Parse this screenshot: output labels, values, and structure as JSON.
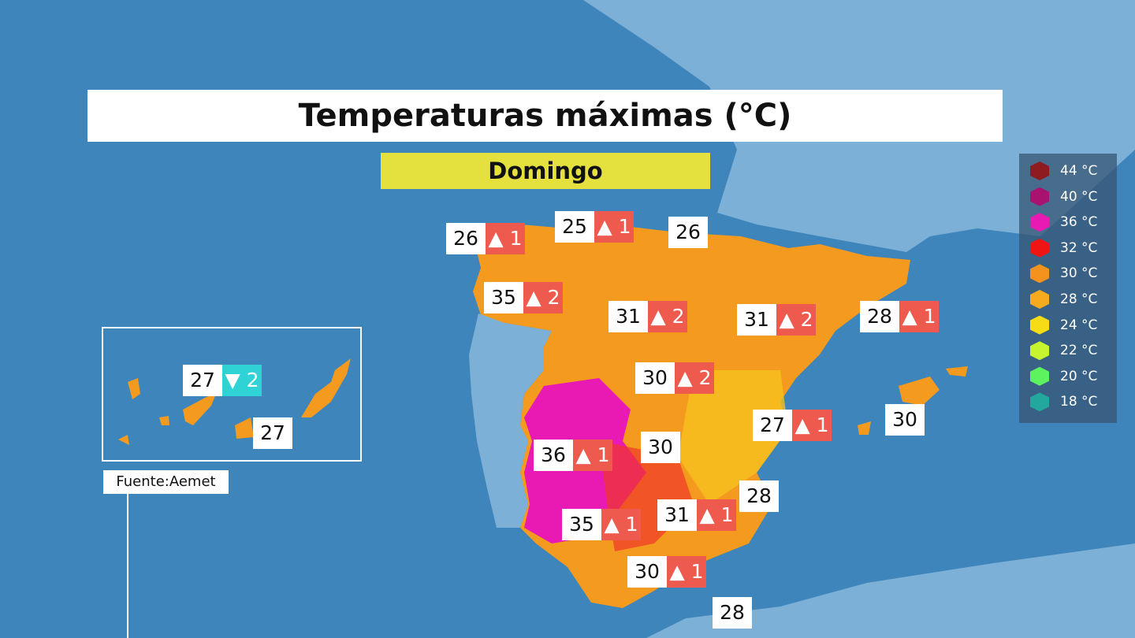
{
  "title": "Temperaturas máximas (°C)",
  "day": "Domingo",
  "source": "Fuente:Aemet",
  "legend": [
    {
      "label": "44 °C",
      "color": "#8e1b1f"
    },
    {
      "label": "40 °C",
      "color": "#a8136f"
    },
    {
      "label": "36 °C",
      "color": "#e81ab3"
    },
    {
      "label": "32 °C",
      "color": "#f01414"
    },
    {
      "label": "30 °C",
      "color": "#f3921c"
    },
    {
      "label": "28 °C",
      "color": "#f6ab1f"
    },
    {
      "label": "24 °C",
      "color": "#f5dc14"
    },
    {
      "label": "22 °C",
      "color": "#c6f42e"
    },
    {
      "label": "20 °C",
      "color": "#5df35e"
    },
    {
      "label": "18 °C",
      "color": "#22a89c"
    }
  ],
  "labels": [
    {
      "temp": 26,
      "change": "▲ 1",
      "color": "#ef5a4e"
    },
    {
      "temp": 25,
      "change": "▲ 1",
      "color": "#ef5a4e"
    },
    {
      "temp": 26
    },
    {
      "temp": 35,
      "change": "▲ 2",
      "color": "#ef5a4e"
    },
    {
      "temp": 31,
      "change": "▲ 2",
      "color": "#ef5a4e"
    },
    {
      "temp": 31,
      "change": "▲ 2",
      "color": "#ef5a4e"
    },
    {
      "temp": 28,
      "change": "▲ 1",
      "color": "#ef5a4e"
    },
    {
      "temp": 30,
      "change": "▲ 2",
      "color": "#ef5a4e"
    },
    {
      "temp": 27,
      "change": "▲ 1",
      "color": "#ef5a4e"
    },
    {
      "temp": 30
    },
    {
      "temp": 30
    },
    {
      "temp": 36,
      "change": "▲ 1",
      "color": "#ef5a4e"
    },
    {
      "temp": 28
    },
    {
      "temp": 35,
      "change": "▲ 1",
      "color": "#ef5a4e"
    },
    {
      "temp": 31,
      "change": "▲ 1",
      "color": "#ef5a4e"
    },
    {
      "temp": 30,
      "change": "▲ 1",
      "color": "#ef5a4e"
    },
    {
      "temp": 28
    }
  ],
  "canary_labels": [
    {
      "temp": 27,
      "change": "▼ 2",
      "color": "#2fd3d6"
    },
    {
      "temp": 27
    }
  ]
}
